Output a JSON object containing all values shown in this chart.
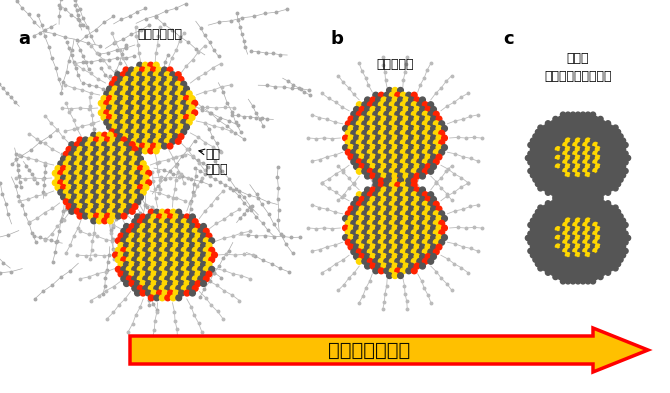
{
  "bg_color": "#ffffff",
  "label_a": "a",
  "label_b": "b",
  "label_c": "c",
  "text_oleic": "オレイン酸殻",
  "text_qdot": "量子\nドット",
  "text_molecular": "分子架橋型",
  "text_epitaxial": "高配向\nエピタキシャル接合",
  "text_conductivity": "高い電気伝導性",
  "arrow_color": "#FFC000",
  "arrow_edge_color": "#FF0000",
  "dot_dark": "#555555",
  "dot_yellow": "#FFD700",
  "dot_red": "#FF2200",
  "dot_light_gray": "#aaaaaa",
  "ligand_color": "#999999",
  "ligand_atom_color": "#cccccc"
}
